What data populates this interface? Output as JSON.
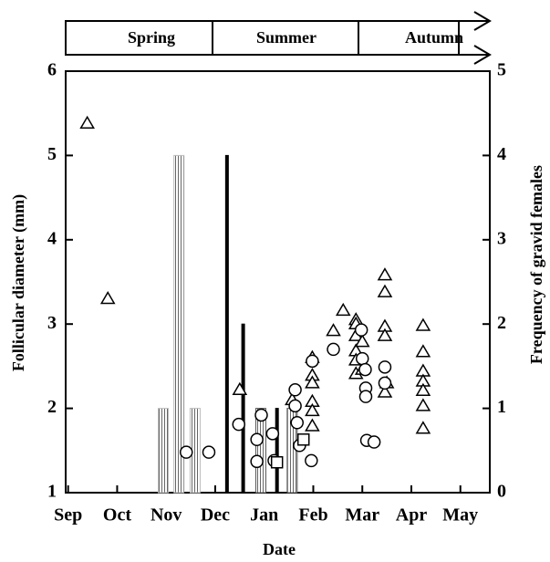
{
  "chart_data": {
    "type": "scatter",
    "seasons": [
      "Spring",
      "Summer",
      "Autumn"
    ],
    "xlabel": "Date",
    "ylabel": "Follicular diameter (mm)",
    "y2label": "Frequency of gravid females",
    "xlim": [
      -0.05,
      8.6
    ],
    "xticks": [
      {
        "value": 0,
        "label": "Sep"
      },
      {
        "value": 1,
        "label": "Oct"
      },
      {
        "value": 2,
        "label": "Nov"
      },
      {
        "value": 3,
        "label": "Dec"
      },
      {
        "value": 4,
        "label": "Jan"
      },
      {
        "value": 5,
        "label": "Feb"
      },
      {
        "value": 6,
        "label": "Mar"
      },
      {
        "value": 7,
        "label": "Apr"
      },
      {
        "value": 8,
        "label": "May"
      }
    ],
    "ylim": [
      1,
      6
    ],
    "yticks": [
      1,
      2,
      3,
      4,
      5,
      6
    ],
    "y2lim": [
      0,
      5
    ],
    "y2ticks": [
      0,
      1,
      2,
      3,
      4,
      5
    ],
    "series": [
      {
        "type": "bar",
        "axis": "y2",
        "color": "#bbbbbb",
        "x": [
          1.94,
          2.26,
          2.59
        ],
        "values": [
          1,
          4,
          1
        ]
      },
      {
        "type": "bar",
        "axis": "y2",
        "color": "#000000",
        "x": [
          3.24,
          3.57,
          4.26
        ],
        "values": [
          4,
          2,
          1
        ]
      },
      {
        "type": "bar",
        "axis": "y2",
        "color": "#555555",
        "x": [
          3.93,
          4.57
        ],
        "values": [
          1,
          1
        ]
      },
      {
        "type": "scatter",
        "marker": "triangle",
        "color": "#000000",
        "x": [
          0.39,
          0.81,
          3.5,
          4.57,
          4.98,
          4.98,
          4.98,
          4.98,
          4.98,
          4.98,
          5.41,
          5.61,
          5.87,
          5.87,
          5.87,
          5.87,
          5.87,
          5.87,
          6.0,
          6.0,
          6.46,
          6.46,
          6.46,
          6.46,
          6.46,
          6.5,
          7.24,
          7.24,
          7.24,
          7.24,
          7.24,
          7.24,
          7.24
        ],
        "values": [
          5.38,
          3.3,
          2.22,
          2.1,
          2.6,
          2.39,
          2.3,
          2.08,
          1.97,
          1.79,
          2.92,
          3.16,
          3.05,
          3.0,
          2.86,
          2.68,
          2.41,
          2.57,
          2.79,
          2.46,
          3.58,
          3.38,
          2.97,
          2.86,
          2.19,
          2.3,
          2.98,
          2.67,
          2.44,
          2.32,
          2.21,
          2.03,
          1.76
        ]
      },
      {
        "type": "scatter",
        "marker": "circle",
        "color": "#000000",
        "x": [
          2.41,
          2.87,
          3.48,
          3.85,
          3.85,
          3.94,
          4.17,
          4.2,
          4.63,
          4.63,
          4.67,
          4.72,
          4.96,
          4.98,
          5.41,
          5.98,
          6.0,
          6.06,
          6.07,
          6.07,
          6.09,
          6.24,
          6.46,
          6.46
        ],
        "values": [
          1.48,
          1.48,
          1.81,
          1.63,
          1.37,
          1.92,
          1.7,
          1.38,
          2.22,
          2.03,
          1.83,
          1.56,
          1.38,
          2.56,
          2.7,
          2.93,
          2.59,
          2.46,
          2.24,
          2.14,
          1.62,
          1.6,
          2.49,
          2.3
        ]
      },
      {
        "type": "scatter",
        "marker": "square",
        "color": "#000000",
        "x": [
          4.26,
          4.8
        ],
        "values": [
          1.36,
          1.63
        ]
      }
    ]
  }
}
